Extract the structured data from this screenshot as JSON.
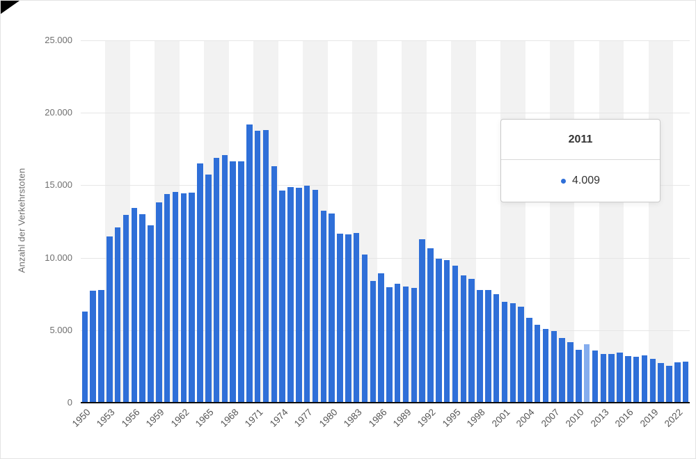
{
  "chart_data": {
    "type": "bar",
    "title": "",
    "xlabel": "",
    "ylabel": "Anzahl der Verkehrstoten",
    "ylim": [
      0,
      25000
    ],
    "grid": true,
    "legend": "none",
    "x_tick_interval": 3,
    "y_ticks": [
      {
        "value": 25000,
        "label": "25.000"
      },
      {
        "value": 20000,
        "label": "20.000"
      },
      {
        "value": 15000,
        "label": "15.000"
      },
      {
        "value": 10000,
        "label": "10.000"
      },
      {
        "value": 5000,
        "label": "5.000"
      },
      {
        "value": 0,
        "label": "0"
      }
    ],
    "categories": [
      "1950",
      "1951",
      "1952",
      "1953",
      "1954",
      "1955",
      "1956",
      "1957",
      "1958",
      "1959",
      "1960",
      "1961",
      "1962",
      "1963",
      "1964",
      "1965",
      "1966",
      "1967",
      "1968",
      "1969",
      "1970",
      "1971",
      "1972",
      "1973",
      "1974",
      "1975",
      "1976",
      "1977",
      "1978",
      "1979",
      "1980",
      "1981",
      "1982",
      "1983",
      "1984",
      "1985",
      "1986",
      "1987",
      "1988",
      "1989",
      "1990",
      "1991",
      "1992",
      "1993",
      "1994",
      "1995",
      "1996",
      "1997",
      "1998",
      "1999",
      "2000",
      "2001",
      "2002",
      "2003",
      "2004",
      "2005",
      "2006",
      "2007",
      "2008",
      "2009",
      "2010",
      "2011",
      "2012",
      "2013",
      "2014",
      "2015",
      "2016",
      "2017",
      "2018",
      "2019",
      "2020",
      "2021",
      "2022",
      "2023"
    ],
    "values": [
      6283,
      7723,
      7753,
      11449,
      12087,
      12941,
      13427,
      13006,
      12222,
      13822,
      14406,
      14533,
      14445,
      14513,
      16494,
      15753,
      16868,
      17084,
      16636,
      16646,
      19193,
      18753,
      18811,
      16302,
      14614,
      14870,
      14820,
      14978,
      14662,
      13222,
      13041,
      11674,
      11608,
      11732,
      10199,
      8400,
      8948,
      7967,
      8213,
      7995,
      7906,
      11300,
      10631,
      9949,
      9814,
      9454,
      8758,
      8549,
      7792,
      7772,
      7503,
      6977,
      6842,
      6613,
      5842,
      5361,
      5091,
      4949,
      4477,
      4152,
      3648,
      4009,
      3600,
      3339,
      3377,
      3459,
      3206,
      3180,
      3275,
      3046,
      2719,
      2562,
      2788,
      2839
    ],
    "highlight_category": "2011"
  },
  "tooltip": {
    "year": "2011",
    "value": "4.009"
  },
  "colors": {
    "bar": "#2f6fd8",
    "bar_highlight": "#85adee",
    "stripe": "#f2f2f2",
    "grid": "#e6e6e6",
    "axis": "#0d0d0d",
    "tooltip_border": "#c9c9c9"
  }
}
